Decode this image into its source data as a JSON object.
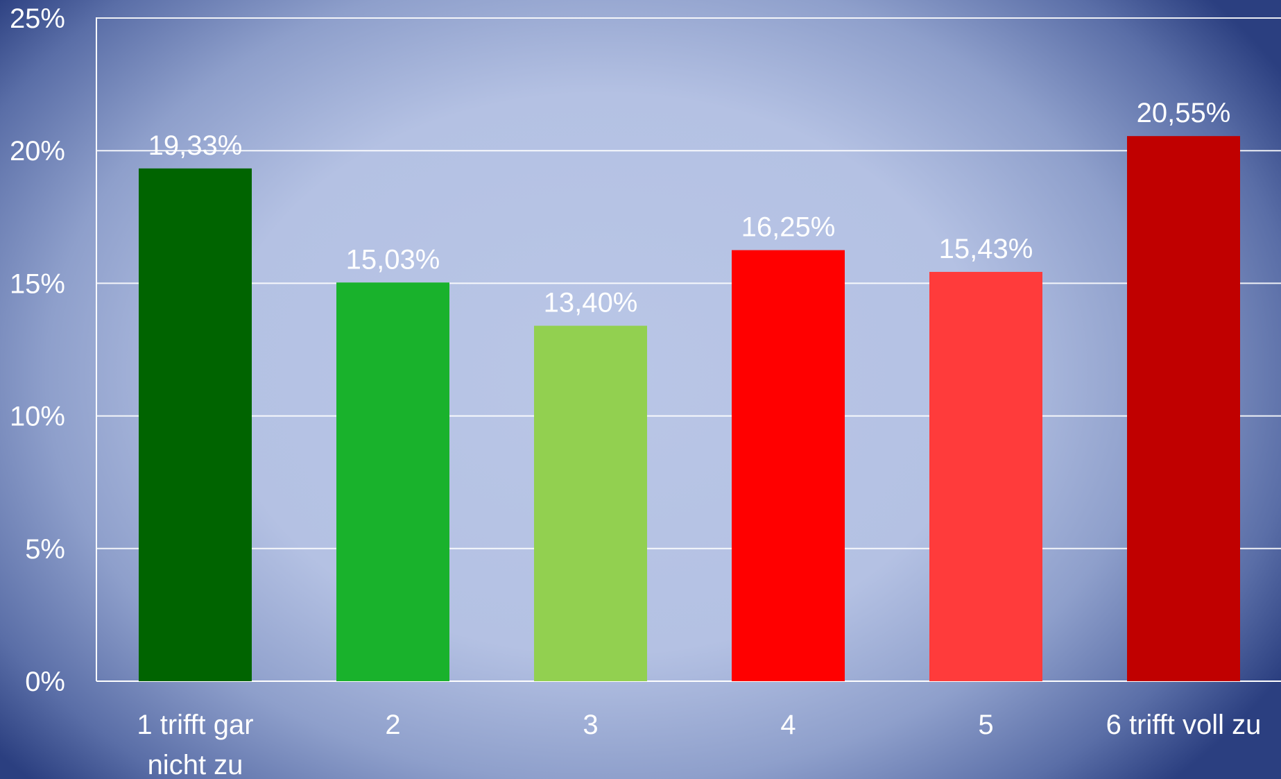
{
  "chart_data": {
    "type": "bar",
    "categories": [
      "1 trifft gar nicht zu",
      "2",
      "3",
      "4",
      "5",
      "6 trifft voll zu"
    ],
    "category_lines": [
      [
        "1 trifft gar",
        "nicht zu"
      ],
      [
        "2"
      ],
      [
        "3"
      ],
      [
        "4"
      ],
      [
        "5"
      ],
      [
        "6 trifft voll zu"
      ]
    ],
    "values": [
      19.33,
      15.03,
      13.4,
      16.25,
      15.43,
      20.55
    ],
    "data_labels": [
      "19,33%",
      "15,03%",
      "13,40%",
      "16,25%",
      "15,43%",
      "20,55%"
    ],
    "colors": [
      "#006400",
      "#19b22c",
      "#92d050",
      "#ff0000",
      "#ff3b3b",
      "#c00000"
    ],
    "ylim": [
      0,
      25
    ],
    "y_ticks": [
      0,
      5,
      10,
      15,
      20,
      25
    ],
    "y_tick_labels": [
      "0%",
      "5%",
      "10%",
      "15%",
      "20%",
      "25%"
    ],
    "grid": true,
    "legend": "none",
    "title": "",
    "xlabel": "",
    "ylabel": ""
  }
}
